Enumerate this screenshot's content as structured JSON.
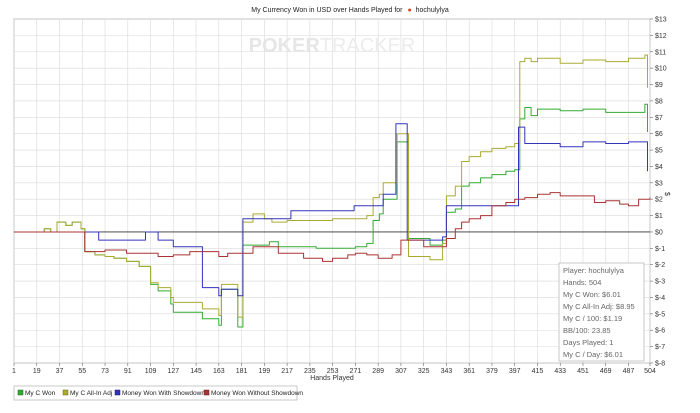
{
  "chart_data": {
    "type": "line",
    "title_prefix": "My Currency Won in USD over Hands Played for",
    "title_player": "hochulylya",
    "xlabel": "Hands Played",
    "ylabel": "$",
    "xlim": [
      1,
      504
    ],
    "ylim": [
      -8,
      13
    ],
    "x_ticks": [
      1,
      19,
      37,
      55,
      73,
      91,
      109,
      127,
      145,
      163,
      181,
      199,
      217,
      235,
      253,
      271,
      289,
      307,
      325,
      343,
      361,
      379,
      397,
      415,
      433,
      451,
      469,
      487,
      504
    ],
    "y_ticks": [
      -8,
      -7,
      -6,
      -5,
      -4,
      -3,
      -2,
      -1,
      0,
      1,
      2,
      3,
      4,
      5,
      6,
      7,
      8,
      9,
      10,
      11,
      12,
      13
    ],
    "y_tick_labels": [
      "$-8",
      "$-7",
      "$-6",
      "$-5",
      "$-4",
      "$-3",
      "$-2",
      "$-1",
      "$0",
      "$1",
      "$2",
      "$3",
      "$4",
      "$5",
      "$6",
      "$7",
      "$8",
      "$9",
      "$10",
      "$11",
      "$12",
      "$13"
    ],
    "grid": true,
    "legend_position": "bottom-left",
    "series": [
      {
        "name": "My C Won",
        "color": "#33aa33",
        "points": [
          [
            1,
            0
          ],
          [
            20,
            0
          ],
          [
            25,
            0.2
          ],
          [
            30,
            0
          ],
          [
            35,
            0.6
          ],
          [
            42,
            0.4
          ],
          [
            47,
            0.6
          ],
          [
            54,
            0.2
          ],
          [
            57,
            -1.2
          ],
          [
            65,
            -1.4
          ],
          [
            73,
            -1.5
          ],
          [
            80,
            -1.6
          ],
          [
            90,
            -1.8
          ],
          [
            100,
            -2.1
          ],
          [
            109,
            -3.2
          ],
          [
            115,
            -3.6
          ],
          [
            125,
            -4.4
          ],
          [
            127,
            -4.9
          ],
          [
            145,
            -4.9
          ],
          [
            150,
            -5.3
          ],
          [
            160,
            -5.3
          ],
          [
            163,
            -5.7
          ],
          [
            165,
            -3.5
          ],
          [
            175,
            -3.5
          ],
          [
            178,
            -5.8
          ],
          [
            181,
            -5.8
          ],
          [
            182,
            -0.8
          ],
          [
            195,
            -0.8
          ],
          [
            199,
            -0.8
          ],
          [
            203,
            -0.6
          ],
          [
            210,
            -0.9
          ],
          [
            217,
            -0.9
          ],
          [
            235,
            -0.9
          ],
          [
            240,
            -1.0
          ],
          [
            253,
            -1.0
          ],
          [
            271,
            -0.9
          ],
          [
            280,
            -0.7
          ],
          [
            285,
            0.7
          ],
          [
            290,
            1.1
          ],
          [
            293,
            2.0
          ],
          [
            300,
            2.0
          ],
          [
            304,
            5.5
          ],
          [
            310,
            5.5
          ],
          [
            313,
            -0.4
          ],
          [
            325,
            -0.4
          ],
          [
            330,
            -0.8
          ],
          [
            340,
            -0.5
          ],
          [
            343,
            1.2
          ],
          [
            350,
            1.4
          ],
          [
            355,
            2.8
          ],
          [
            361,
            3.0
          ],
          [
            370,
            3.3
          ],
          [
            379,
            3.5
          ],
          [
            390,
            3.7
          ],
          [
            397,
            3.8
          ],
          [
            401,
            6.9
          ],
          [
            405,
            7.6
          ],
          [
            410,
            7.1
          ],
          [
            415,
            7.5
          ],
          [
            433,
            7.4
          ],
          [
            451,
            7.5
          ],
          [
            469,
            7.3
          ],
          [
            487,
            7.3
          ],
          [
            500,
            7.8
          ],
          [
            502,
            6.1
          ]
        ]
      },
      {
        "name": "My C All-In Adj",
        "color": "#aaaa33",
        "points": [
          [
            1,
            0
          ],
          [
            20,
            0
          ],
          [
            25,
            0.2
          ],
          [
            30,
            0
          ],
          [
            35,
            0.6
          ],
          [
            42,
            0.4
          ],
          [
            47,
            0.6
          ],
          [
            54,
            0.2
          ],
          [
            57,
            -1.2
          ],
          [
            65,
            -1.4
          ],
          [
            73,
            -1.5
          ],
          [
            80,
            -1.6
          ],
          [
            90,
            -1.8
          ],
          [
            100,
            -2.1
          ],
          [
            109,
            -3.1
          ],
          [
            115,
            -3.4
          ],
          [
            125,
            -4.0
          ],
          [
            127,
            -4.3
          ],
          [
            145,
            -4.3
          ],
          [
            150,
            -4.7
          ],
          [
            160,
            -4.7
          ],
          [
            163,
            -5.1
          ],
          [
            165,
            -3.2
          ],
          [
            175,
            -3.2
          ],
          [
            178,
            -5.2
          ],
          [
            181,
            -5.2
          ],
          [
            182,
            0.6
          ],
          [
            190,
            1.1
          ],
          [
            199,
            0.8
          ],
          [
            205,
            0.6
          ],
          [
            217,
            0.7
          ],
          [
            235,
            0.7
          ],
          [
            253,
            0.8
          ],
          [
            271,
            0.8
          ],
          [
            280,
            1.0
          ],
          [
            285,
            2.1
          ],
          [
            290,
            2.3
          ],
          [
            293,
            3.0
          ],
          [
            300,
            3.0
          ],
          [
            304,
            6.0
          ],
          [
            310,
            6.0
          ],
          [
            313,
            -1.5
          ],
          [
            325,
            -1.5
          ],
          [
            330,
            -1.7
          ],
          [
            340,
            -0.7
          ],
          [
            343,
            2.2
          ],
          [
            350,
            2.8
          ],
          [
            355,
            4.3
          ],
          [
            361,
            4.6
          ],
          [
            370,
            4.9
          ],
          [
            379,
            5.1
          ],
          [
            390,
            5.2
          ],
          [
            397,
            5.4
          ],
          [
            401,
            10.4
          ],
          [
            405,
            10.6
          ],
          [
            410,
            10.4
          ],
          [
            415,
            10.6
          ],
          [
            433,
            10.3
          ],
          [
            451,
            10.5
          ],
          [
            469,
            10.4
          ],
          [
            487,
            10.6
          ],
          [
            500,
            10.8
          ],
          [
            502,
            8.8
          ]
        ]
      },
      {
        "name": "Money Won With Showdown",
        "color": "#3333bb",
        "points": [
          [
            1,
            0
          ],
          [
            55,
            0
          ],
          [
            65,
            0
          ],
          [
            68,
            -0.5
          ],
          [
            90,
            -0.5
          ],
          [
            100,
            -0.5
          ],
          [
            105,
            0
          ],
          [
            109,
            0
          ],
          [
            115,
            -0.5
          ],
          [
            125,
            -0.5
          ],
          [
            127,
            -0.9
          ],
          [
            145,
            -0.9
          ],
          [
            150,
            -3.4
          ],
          [
            160,
            -3.4
          ],
          [
            163,
            -3.9
          ],
          [
            165,
            -3.5
          ],
          [
            175,
            -3.5
          ],
          [
            178,
            -3.9
          ],
          [
            181,
            -3.9
          ],
          [
            182,
            0.8
          ],
          [
            199,
            0.8
          ],
          [
            217,
            0.8
          ],
          [
            220,
            1.3
          ],
          [
            235,
            1.3
          ],
          [
            253,
            1.3
          ],
          [
            270,
            1.6
          ],
          [
            285,
            1.6
          ],
          [
            293,
            2.3
          ],
          [
            300,
            2.3
          ],
          [
            303,
            6.6
          ],
          [
            310,
            6.6
          ],
          [
            312,
            -0.5
          ],
          [
            325,
            -0.5
          ],
          [
            340,
            -0.3
          ],
          [
            343,
            1.6
          ],
          [
            361,
            1.6
          ],
          [
            379,
            1.6
          ],
          [
            397,
            1.6
          ],
          [
            400,
            6.4
          ],
          [
            405,
            5.4
          ],
          [
            433,
            5.2
          ],
          [
            451,
            5.5
          ],
          [
            469,
            5.4
          ],
          [
            487,
            5.5
          ],
          [
            500,
            5.5
          ],
          [
            502,
            3.7
          ]
        ]
      },
      {
        "name": "Money Won Without Showdown",
        "color": "#aa3333",
        "points": [
          [
            1,
            0
          ],
          [
            55,
            0
          ],
          [
            57,
            -1.2
          ],
          [
            73,
            -1.1
          ],
          [
            90,
            -1.3
          ],
          [
            109,
            -1.3
          ],
          [
            115,
            -1.5
          ],
          [
            127,
            -1.4
          ],
          [
            140,
            -1.2
          ],
          [
            145,
            -1.2
          ],
          [
            163,
            -1.5
          ],
          [
            170,
            -1.3
          ],
          [
            181,
            -1.3
          ],
          [
            190,
            -0.9
          ],
          [
            199,
            -0.9
          ],
          [
            210,
            -1.3
          ],
          [
            217,
            -1.3
          ],
          [
            230,
            -1.6
          ],
          [
            235,
            -1.6
          ],
          [
            245,
            -1.8
          ],
          [
            253,
            -1.6
          ],
          [
            265,
            -1.4
          ],
          [
            271,
            -1.3
          ],
          [
            280,
            -1.4
          ],
          [
            289,
            -1.6
          ],
          [
            300,
            -1.4
          ],
          [
            307,
            -0.5
          ],
          [
            312,
            -0.5
          ],
          [
            325,
            -0.9
          ],
          [
            343,
            -0.4
          ],
          [
            350,
            0.2
          ],
          [
            355,
            0.6
          ],
          [
            361,
            0.8
          ],
          [
            370,
            1.0
          ],
          [
            379,
            1.6
          ],
          [
            390,
            1.8
          ],
          [
            397,
            2.0
          ],
          [
            405,
            2.1
          ],
          [
            415,
            2.3
          ],
          [
            425,
            2.4
          ],
          [
            433,
            2.2
          ],
          [
            451,
            2.2
          ],
          [
            460,
            1.8
          ],
          [
            469,
            1.9
          ],
          [
            480,
            1.7
          ],
          [
            487,
            1.6
          ],
          [
            495,
            2.0
          ],
          [
            504,
            2.1
          ]
        ]
      }
    ],
    "legend_labels": [
      "My C Won",
      "My C All-In Adj",
      "Money Won With Showdown",
      "Money Won Without Showdown"
    ]
  },
  "watermark": {
    "part1": "POKER",
    "part2": "TRACKER"
  },
  "stats": [
    "Player: hochulylya",
    "Hands: 504",
    "My C Won: $6.01",
    "My C All-In Adj: $8.95",
    "My C / 100: $1.19",
    "BB/100: 23.85",
    "Days Played: 1",
    "My C / Day: $6.01"
  ],
  "colors": {
    "grid": "#d9d9d9",
    "zero_line": "#333333",
    "stats_border": "#bbbbbb"
  }
}
